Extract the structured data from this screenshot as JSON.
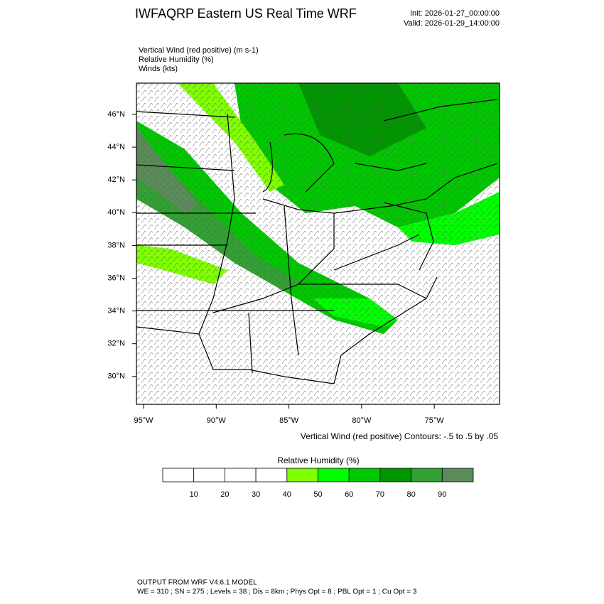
{
  "title": "IWFAQRP Eastern US Real Time WRF",
  "init": "Init: 2026-01-27_00:00:00",
  "valid": "Valid: 2026-01-29_14:00:00",
  "fields": [
    "Vertical Wind (red positive)   (m s-1)",
    "Relative Humidity   (%)",
    "Winds   (kts)"
  ],
  "map": {
    "lat_labels": [
      "46°N",
      "44°N",
      "42°N",
      "40°N",
      "38°N",
      "36°N",
      "34°N",
      "32°N",
      "30°N"
    ],
    "lon_labels": [
      "95°W",
      "90°W",
      "85°W",
      "80°W",
      "75°W"
    ]
  },
  "contour_note": "Vertical Wind (red positive) Contours: -.5 to .5 by .05",
  "colorbar": {
    "title": "Relative Humidity  (%)",
    "labels": [
      "10",
      "20",
      "30",
      "40",
      "50",
      "60",
      "70",
      "80",
      "90"
    ],
    "colors": [
      "#ffffff",
      "#ffffff",
      "#ffffff",
      "#ffffff",
      "#80ff00",
      "#00ff00",
      "#00c800",
      "#009600",
      "#32a032",
      "#5a8c5a"
    ]
  },
  "footer": [
    "OUTPUT FROM WRF V4.6.1 MODEL",
    "WE = 310 ; SN = 275 ; Levels = 38 ; Dis = 8km ; Phys Opt = 8 ; PBL Opt = 1 ; Cu Opt = 3"
  ]
}
